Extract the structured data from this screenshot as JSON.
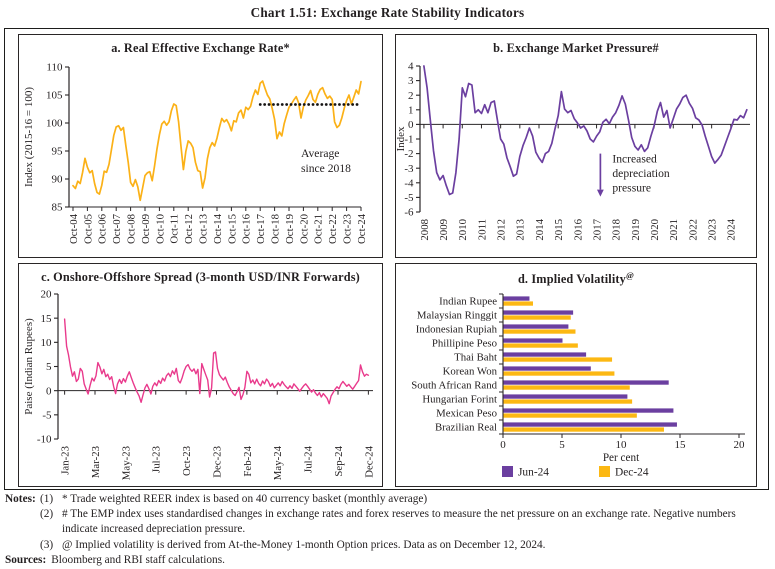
{
  "figure": {
    "title": "Chart 1.51: Exchange Rate Stability Indicators"
  },
  "chart_data": {
    "reer": {
      "type": "line",
      "panel_title": "a. Real Effective Exchange Rate*",
      "ylabel": "Index (2015-16 = 100)",
      "ylim": [
        85,
        110
      ],
      "yticks": [
        110,
        105,
        100,
        95,
        90,
        85
      ],
      "xlim": [
        0,
        120
      ],
      "x0": 0,
      "dx": 1,
      "line_color": "#FBB117",
      "xticks": [
        {
          "x": 0,
          "label": "Oct-04"
        },
        {
          "x": 6,
          "label": "Oct-05"
        },
        {
          "x": 12,
          "label": "Oct-06"
        },
        {
          "x": 18,
          "label": "Oct-07"
        },
        {
          "x": 24,
          "label": "Oct-08"
        },
        {
          "x": 30,
          "label": "Oct-09"
        },
        {
          "x": 36,
          "label": "Oct-10"
        },
        {
          "x": 42,
          "label": "Oct-11"
        },
        {
          "x": 48,
          "label": "Oct-12"
        },
        {
          "x": 54,
          "label": "Oct-13"
        },
        {
          "x": 60,
          "label": "Oct-14"
        },
        {
          "x": 66,
          "label": "Oct-15"
        },
        {
          "x": 72,
          "label": "Oct-16"
        },
        {
          "x": 78,
          "label": "Oct-17"
        },
        {
          "x": 84,
          "label": "Oct-18"
        },
        {
          "x": 90,
          "label": "Oct-19"
        },
        {
          "x": 96,
          "label": "Oct-20"
        },
        {
          "x": 102,
          "label": "Oct-21"
        },
        {
          "x": 108,
          "label": "Oct-22"
        },
        {
          "x": 114,
          "label": "Oct-23"
        },
        {
          "x": 120,
          "label": "Oct-24"
        }
      ],
      "values": [
        88.8,
        88.3,
        89.6,
        89.2,
        91.2,
        93.7,
        92.1,
        91.1,
        91.5,
        89.2,
        87.6,
        87.3,
        88.9,
        91.4,
        91.2,
        92.6,
        95.2,
        97.8,
        99.3,
        99.5,
        98.7,
        99.2,
        96.0,
        93.0,
        89.4,
        88.7,
        89.9,
        88.6,
        86.2,
        88.4,
        90.6,
        91.1,
        91.3,
        89.7,
        92.4,
        95.4,
        97.9,
        99.8,
        100.3,
        99.6,
        100.2,
        102.2,
        103.4,
        103.1,
        100.2,
        95.8,
        91.7,
        94.9,
        96.8,
        96.4,
        95.6,
        93.0,
        91.5,
        91.3,
        88.4,
        90.2,
        93.6,
        95.6,
        96.5,
        95.9,
        97.3,
        99.2,
        100.8,
        100.2,
        100.6,
        99.8,
        98.6,
        100.4,
        100.2,
        101.8,
        102.3,
        100.9,
        102.8,
        102.4,
        103.0,
        104.7,
        105.9,
        105.1,
        107.1,
        107.5,
        106.2,
        105.0,
        104.3,
        102.6,
        100.6,
        97.2,
        98.4,
        97.7,
        99.9,
        101.4,
        102.8,
        103.4,
        104.1,
        104.7,
        103.6,
        100.9,
        102.9,
        104.1,
        104.9,
        105.8,
        104.2,
        103.7,
        105.1,
        106.0,
        106.3,
        105.2,
        104.4,
        104.8,
        104.2,
        100.2,
        99.2,
        99.6,
        100.9,
        102.6,
        104.0,
        105.0,
        103.4,
        104.6,
        105.9,
        105.2,
        107.4
      ],
      "avg_line": {
        "value": 103.3,
        "from_x": 78,
        "to_x": 120,
        "color": "#161413",
        "label": [
          "Average",
          "since 2018"
        ],
        "label_x": 95,
        "label_y": 93.9
      }
    },
    "emp": {
      "type": "line",
      "panel_title": "b. Exchange Market Pressure#",
      "ylabel": "Index",
      "ylim": [
        -6,
        4
      ],
      "yticks": [
        4,
        3,
        2,
        1,
        0,
        -1,
        -2,
        -3,
        -4,
        -5,
        -6
      ],
      "xlim": [
        2007.9,
        2025.0
      ],
      "x0": 2008,
      "dx": 0.16667,
      "line_color": "#6B3FA0",
      "xticks": [
        {
          "x": 2008,
          "label": "2008"
        },
        {
          "x": 2009,
          "label": "2009"
        },
        {
          "x": 2010,
          "label": "2010"
        },
        {
          "x": 2011,
          "label": "2011"
        },
        {
          "x": 2012,
          "label": "2012"
        },
        {
          "x": 2013,
          "label": "2013"
        },
        {
          "x": 2014,
          "label": "2014"
        },
        {
          "x": 2015,
          "label": "2015"
        },
        {
          "x": 2016,
          "label": "2016"
        },
        {
          "x": 2017,
          "label": "2017"
        },
        {
          "x": 2018,
          "label": "2018"
        },
        {
          "x": 2019,
          "label": "2019"
        },
        {
          "x": 2020,
          "label": "2020"
        },
        {
          "x": 2021,
          "label": "2021"
        },
        {
          "x": 2022,
          "label": "2022"
        },
        {
          "x": 2023,
          "label": "2023"
        },
        {
          "x": 2024,
          "label": "2024"
        }
      ],
      "values": [
        4.0,
        2.5,
        0.3,
        -1.8,
        -3.3,
        -3.8,
        -3.5,
        -4.2,
        -4.8,
        -4.7,
        -3.3,
        -1.0,
        2.5,
        1.9,
        2.8,
        2.7,
        0.8,
        1.0,
        0.75,
        1.35,
        0.8,
        1.5,
        1.6,
        0.3,
        -1.0,
        -1.35,
        -2.3,
        -2.9,
        -3.55,
        -3.4,
        -2.2,
        -1.45,
        -0.9,
        -0.25,
        -0.8,
        -1.9,
        -2.3,
        -2.6,
        -2.0,
        -1.85,
        -1.3,
        -0.3,
        0.6,
        2.25,
        1.05,
        0.8,
        0.95,
        0.4,
        0.1,
        -0.25,
        -0.1,
        -0.45,
        -1.0,
        -1.2,
        -0.8,
        -0.5,
        0.15,
        0.35,
        0.05,
        0.5,
        0.8,
        1.3,
        1.95,
        1.4,
        0.3,
        -0.9,
        -1.5,
        -1.75,
        -1.4,
        -1.85,
        -1.6,
        -0.8,
        -0.1,
        0.9,
        1.5,
        0.5,
        0.95,
        -0.25,
        0.4,
        1.05,
        1.4,
        1.85,
        2.0,
        1.45,
        1.1,
        0.45,
        0.3,
        -0.05,
        -0.8,
        -1.5,
        -2.2,
        -2.65,
        -2.4,
        -2.1,
        -1.5,
        -0.9,
        -0.3,
        0.35,
        0.3,
        0.6,
        0.45,
        1.0
      ],
      "annotation": {
        "x": 2017.2,
        "y_from": -2.0,
        "y_to": -4.95,
        "color": "#6B3FA0",
        "lines": [
          "Increased",
          "depreciation",
          "pressure"
        ]
      }
    },
    "spread": {
      "type": "line",
      "panel_title": "c. Onshore-Offshore Spread (3-month USD/INR Forwards)",
      "ylabel": "Paise (Indian Rupees)",
      "ylim": [
        -10,
        20
      ],
      "yticks": [
        20,
        15,
        10,
        5,
        0,
        -5,
        -10
      ],
      "xlim": [
        -0.35,
        23.35
      ],
      "x0": 0,
      "dx": 0.14839,
      "line_color": "#E93A8C",
      "xticks": [
        {
          "x": 0,
          "label": "Jan-23"
        },
        {
          "x": 2.3,
          "label": "Mar-23"
        },
        {
          "x": 4.6,
          "label": "May-23"
        },
        {
          "x": 6.9,
          "label": "Jul-23"
        },
        {
          "x": 9.2,
          "label": "Oct-23"
        },
        {
          "x": 11.5,
          "label": "Dec-23"
        },
        {
          "x": 13.8,
          "label": "Feb-24"
        },
        {
          "x": 16.1,
          "label": "May-24"
        },
        {
          "x": 18.4,
          "label": "Jul-24"
        },
        {
          "x": 20.7,
          "label": "Sep-24"
        },
        {
          "x": 23,
          "label": "Dec-24"
        }
      ],
      "values": [
        14.8,
        9.2,
        7.4,
        4.9,
        3.0,
        3.9,
        1.9,
        2.4,
        4.6,
        4.0,
        1.4,
        0.3,
        -0.7,
        1.1,
        2.6,
        2.0,
        3.1,
        5.8,
        4.9,
        3.5,
        4.4,
        2.9,
        3.4,
        2.3,
        2.9,
        0.9,
        -0.6,
        1.4,
        2.3,
        1.5,
        2.5,
        1.8,
        3.0,
        3.9,
        2.7,
        1.6,
        0.6,
        -0.3,
        -1.1,
        -2.4,
        -0.9,
        0.6,
        1.3,
        0.4,
        -0.7,
        0.9,
        1.6,
        1.0,
        2.1,
        1.5,
        2.6,
        2.0,
        3.1,
        3.6,
        2.9,
        4.1,
        3.4,
        4.6,
        2.1,
        1.6,
        2.7,
        4.1,
        5.0,
        5.4,
        4.5,
        4.0,
        4.5,
        3.5,
        4.4,
        -0.6,
        5.6,
        4.4,
        3.3,
        2.2,
        -1.3,
        0.6,
        7.8,
        8.0,
        4.6,
        3.3,
        2.7,
        2.2,
        2.8,
        1.7,
        0.8,
        0.1,
        -0.6,
        -1.0,
        -0.2,
        0.7,
        -1.8,
        -0.8,
        0.7,
        4.0,
        3.4,
        1.6,
        2.2,
        1.4,
        2.4,
        1.5,
        1.0,
        2.0,
        1.4,
        2.4,
        1.9,
        0.9,
        1.5,
        0.6,
        1.1,
        1.6,
        1.0,
        1.9,
        1.3,
        0.8,
        0.4,
        1.0,
        0.5,
        1.4,
        0.9,
        0.4,
        -0.1,
        0.5,
        1.0,
        1.4,
        0.9,
        0.3,
        -0.3,
        0.2,
        -0.5,
        -1.0,
        -0.4,
        -1.3,
        -0.6,
        -1.1,
        -1.6,
        -2.7,
        -1.1,
        -0.4,
        0.3,
        0.8,
        0.4,
        1.3,
        1.9,
        1.4,
        0.9,
        1.3,
        0.8,
        0.3,
        0.9,
        1.5,
        2.1,
        5.3,
        3.9,
        3.0,
        3.4,
        3.2
      ]
    },
    "vol": {
      "type": "barh",
      "panel_title": "d. Implied Volatility",
      "title_sup": "@",
      "xlabel": "Per cent",
      "xlim": [
        0,
        20
      ],
      "xticks": [
        0,
        5,
        10,
        15,
        20
      ],
      "categories": [
        "Indian Rupee",
        "Malaysian Ringgit",
        "Indonesian Rupiah",
        "Phillipine Peso",
        "Thai Baht",
        "Korean Won",
        "South African Rand",
        "Hungarian Forint",
        "Mexican Peso",
        "Brazilian Real"
      ],
      "series": [
        {
          "name": "Jun-24",
          "color": "#6B3FA0",
          "values": [
            2.2,
            5.9,
            5.5,
            5.0,
            7.0,
            7.4,
            14.0,
            10.5,
            14.4,
            14.7
          ]
        },
        {
          "name": "Dec-24",
          "color": "#FCB813",
          "values": [
            2.5,
            5.7,
            6.1,
            6.3,
            9.2,
            9.4,
            10.7,
            10.9,
            11.3,
            13.6
          ]
        }
      ]
    }
  },
  "notes": {
    "label": "Notes:",
    "items": [
      {
        "num": "(1)",
        "text": "* Trade weighted REER index is based on 40 currency basket (monthly average)"
      },
      {
        "num": "(2)",
        "text": "# The EMP index uses standardised changes in exchange rates and forex reserves to measure the net pressure on an exchange rate. Negative numbers indicate increased depreciation pressure."
      },
      {
        "num": "(3)",
        "text": "@ Implied volatility is derived from At-the-Money 1-month Option prices. Data as on December 12, 2024."
      }
    ],
    "sources_label": "Sources:",
    "sources_text": "Bloomberg and RBI staff calculations."
  }
}
